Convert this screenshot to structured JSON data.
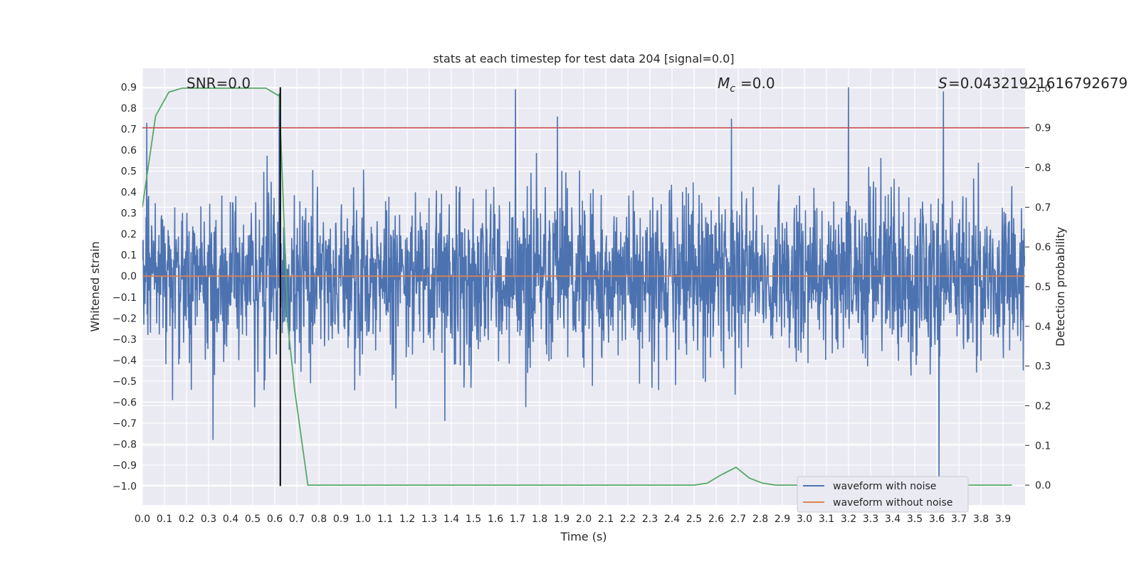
{
  "chart_data": {
    "type": "line",
    "title": "stats at each timestep for test data 204 [signal=0.0]",
    "xlabel": "Time (s)",
    "ylabel": "Whitened strain",
    "y2label": "Detection probability",
    "xlim": [
      0.0,
      4.0
    ],
    "ylim": [
      -1.09,
      0.99
    ],
    "y2lim": [
      -0.05,
      1.05
    ],
    "xticks": [
      0.0,
      0.1,
      0.2,
      0.3,
      0.4,
      0.5,
      0.6,
      0.7,
      0.8,
      0.9,
      1.0,
      1.1,
      1.2,
      1.3,
      1.4,
      1.5,
      1.6,
      1.7,
      1.8,
      1.9,
      2.0,
      2.1,
      2.2,
      2.3,
      2.4,
      2.5,
      2.6,
      2.7,
      2.8,
      2.9,
      3.0,
      3.1,
      3.2,
      3.3,
      3.4,
      3.5,
      3.6,
      3.7,
      3.8,
      3.9
    ],
    "yticks": [
      -1.0,
      -0.9,
      -0.8,
      -0.7,
      -0.6,
      -0.5,
      -0.4,
      -0.3,
      -0.2,
      -0.1,
      0.0,
      0.1,
      0.2,
      0.3,
      0.4,
      0.5,
      0.6,
      0.7,
      0.8,
      0.9
    ],
    "y2ticks": [
      0.0,
      0.1,
      0.2,
      0.3,
      0.4,
      0.5,
      0.6,
      0.7,
      0.8,
      0.9,
      1.0
    ],
    "grid": true,
    "legend_position": "bottom-right",
    "annotations": {
      "snr": "SNR=0.0",
      "mc": "=0.0",
      "s": "=0.04321921616792679"
    },
    "series": [
      {
        "name": "waveform with noise",
        "color": "#4c72b0",
        "axis": "left",
        "sampling": "dense random noise, amplitude ~0.25 rms",
        "x_range": [
          0.0,
          4.0
        ],
        "notable_peaks": [
          {
            "x": 0.02,
            "y": 0.73
          },
          {
            "x": 0.32,
            "y": -0.78
          },
          {
            "x": 0.62,
            "y": 0.87
          },
          {
            "x": 1.69,
            "y": 0.89
          },
          {
            "x": 1.88,
            "y": 0.76
          },
          {
            "x": 2.67,
            "y": 0.75
          },
          {
            "x": 3.2,
            "y": 0.9
          },
          {
            "x": 3.63,
            "y": 0.88
          },
          {
            "x": 3.61,
            "y": -1.0
          },
          {
            "x": 1.37,
            "y": -0.69
          }
        ]
      },
      {
        "name": "waveform without noise",
        "color": "#dd8452",
        "axis": "left",
        "x": [
          0.0,
          4.0
        ],
        "y": [
          0.0,
          0.0
        ]
      },
      {
        "color": "#55a868",
        "axis": "right",
        "x": [
          0.0,
          0.06,
          0.12,
          0.18,
          0.25,
          0.31,
          0.37,
          0.43,
          0.5,
          0.56,
          0.62,
          0.66,
          0.69,
          0.75,
          0.81,
          0.87,
          1.0,
          1.25,
          1.5,
          1.75,
          2.0,
          2.25,
          2.5,
          2.56,
          2.62,
          2.69,
          2.75,
          2.81,
          2.87,
          2.94,
          3.0,
          3.25,
          3.5,
          3.75,
          3.94
        ],
        "y": [
          0.7,
          0.93,
          0.99,
          1.0,
          1.0,
          1.0,
          1.0,
          1.0,
          1.0,
          1.0,
          0.98,
          0.4,
          0.24,
          0.0,
          0.0,
          0.0,
          0.0,
          0.0,
          0.0,
          0.0,
          0.0,
          0.0,
          0.0,
          0.005,
          0.025,
          0.045,
          0.018,
          0.005,
          0.0,
          0.0,
          0.0,
          0.0,
          0.0,
          0.0,
          0.0
        ]
      },
      {
        "color": "#c44e52",
        "axis": "right",
        "x": [
          0.0,
          4.0
        ],
        "y": [
          0.9,
          0.9
        ]
      },
      {
        "color": "#000000",
        "axis": "left",
        "type": "vline",
        "x": 0.625,
        "y": [
          -1.0,
          0.9
        ]
      }
    ]
  }
}
